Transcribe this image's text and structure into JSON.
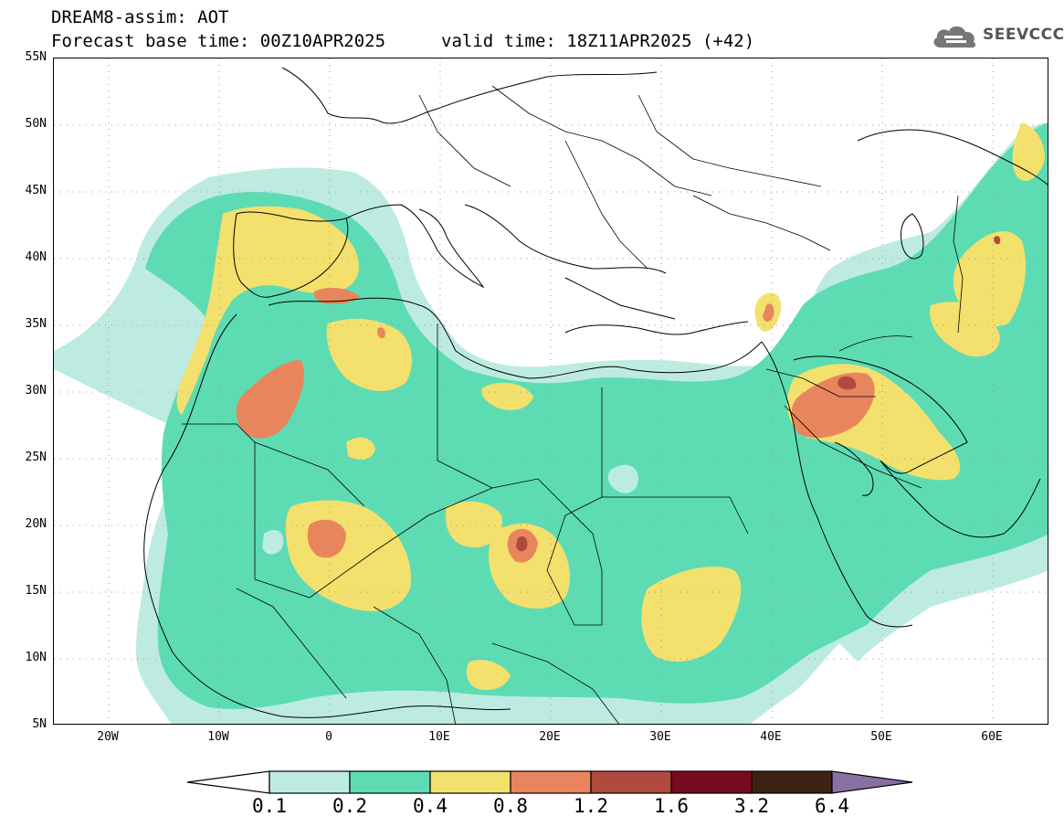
{
  "header": {
    "title": "DREAM8-assim: AOT",
    "base_time": "Forecast base time: 00Z10APR2025",
    "valid_time": "valid time: 18Z11APR2025 (+42)"
  },
  "logo": {
    "text": "SEEVCCC"
  },
  "map": {
    "lat_labels": [
      "55N",
      "50N",
      "45N",
      "40N",
      "35N",
      "30N",
      "25N",
      "20N",
      "15N",
      "10N",
      "5N"
    ],
    "lon_labels": [
      "20W",
      "10W",
      "0",
      "10E",
      "20E",
      "30E",
      "40E",
      "50E",
      "60E"
    ],
    "lat_range": [
      5,
      55
    ],
    "lon_range": [
      -25,
      65
    ],
    "gridlines": "dotted",
    "field": "AOT"
  },
  "colorbar": {
    "levels": [
      "0.1",
      "0.2",
      "0.4",
      "0.8",
      "1.2",
      "1.6",
      "3.2",
      "6.4"
    ],
    "colors": [
      "#ffffff",
      "#bdebe2",
      "#5ddcb4",
      "#f4e06c",
      "#e9855c",
      "#b04a3e",
      "#770a1e",
      "#3b2212",
      "#8a6fa4"
    ]
  }
}
